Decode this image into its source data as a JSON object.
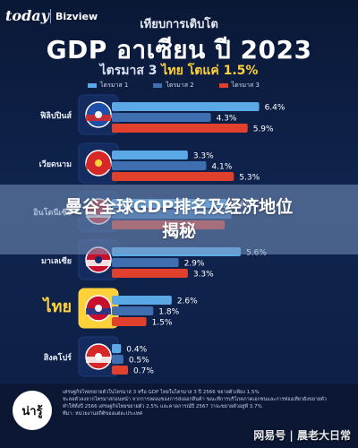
{
  "header": {
    "brand_today": "today",
    "brand_biz": "Bizview",
    "subtitle": "เทียบการเติบโต",
    "title_gdp": "GDP",
    "title_rest": "อาเซียน ปี 2023",
    "quarter_prefix": "ไตรมาส 3",
    "quarter_highlight": "ไทย โตแค่ 1.5%"
  },
  "colors": {
    "q1": "#5aa9e6",
    "q2": "#3f6fb0",
    "q3": "#e0402c",
    "thailand_row": "#ffd23c"
  },
  "banner": {
    "line1": "曼谷全球GDP排名及经济地位",
    "line2": "揭秘"
  },
  "chart_data": {
    "type": "bar",
    "orientation": "horizontal",
    "categories": [
      "ฟิลิปปินส์",
      "เวียดนาม",
      "อินโดนีเซีย",
      "มาเลเซีย",
      "ไทย",
      "สิงคโปร์"
    ],
    "flags": [
      "philippines-flag-icon",
      "vietnam-flag-icon",
      "indonesia-flag-icon",
      "malaysia-flag-icon",
      "thailand-flag-icon",
      "singapore-flag-icon"
    ],
    "series": [
      {
        "name": "ไตรมาส 1",
        "values": [
          6.4,
          3.3,
          5.0,
          5.6,
          2.6,
          0.4
        ],
        "labels": [
          "6.4%",
          "3.3%",
          "5.0%",
          "5.6%",
          "2.6%",
          "0.4%"
        ]
      },
      {
        "name": "ไตรมาส 2",
        "values": [
          4.3,
          4.1,
          5.2,
          2.9,
          1.8,
          0.5
        ],
        "labels": [
          "4.3%",
          "4.1%",
          "",
          "2.9%",
          "1.8%",
          "0.5%"
        ]
      },
      {
        "name": "ไตรมาส 3",
        "values": [
          5.9,
          5.3,
          4.9,
          3.3,
          1.5,
          0.7
        ],
        "labels": [
          "5.9%",
          "5.3%",
          "",
          "3.3%",
          "1.5%",
          "0.7%"
        ]
      }
    ],
    "xlim": [
      0,
      7
    ],
    "highlight_category": "ไทย"
  },
  "footer": {
    "logo": "น่ารู้",
    "lines": [
      "เศรษฐกิจไทยขยายตัวในไตรมาส 3 หรือ GDP ไทยในไตรมาส 3 ปี 2566 ขยายตัวเพียง 1.5%",
      "ชะลอตัวลงจากไตรมาสก่อนหน้า จากการลดลงของการส่งออกสินค้า ขณะที่การบริโภคภาคเอกชนและการท่องเที่ยวยังขยายตัว",
      "ทำให้ทั้งปี 2566 เศรษฐกิจไทยขยายตัว 2.5% และคาดการณ์ปี 2567 ว่าจะขยายตัวอยู่ที่ 3.7%",
      "ที่มา: หน่วยงานสถิติของแต่ละประเทศ"
    ],
    "watermark": "网易号 | 晨老大日常"
  }
}
